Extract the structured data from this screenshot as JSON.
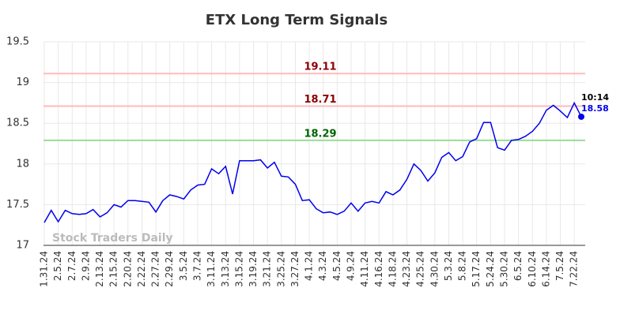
{
  "chart_data": {
    "type": "line",
    "title": "ETX Long Term Signals",
    "categories": [
      "1.31.24",
      null,
      "2.5.24",
      null,
      "2.7.24",
      null,
      "2.9.24",
      null,
      "2.13.24",
      null,
      "2.15.24",
      null,
      "2.20.24",
      null,
      "2.22.24",
      null,
      "2.27.24",
      null,
      "2.29.24",
      null,
      "3.5.24",
      null,
      "3.7.24",
      null,
      "3.11.24",
      null,
      "3.13.24",
      null,
      "3.15.24",
      null,
      "3.19.24",
      null,
      "3.21.24",
      null,
      "3.25.24",
      null,
      "3.27.24",
      null,
      "4.1.24",
      null,
      "4.3.24",
      null,
      "4.5.24",
      null,
      "4.9.24",
      null,
      "4.11.24",
      null,
      "4.16.24",
      null,
      "4.18.24",
      null,
      "4.23.24",
      null,
      "4.25.24",
      null,
      "4.30.24",
      null,
      "5.3.24",
      null,
      "5.8.24",
      null,
      "5.17.24",
      null,
      "5.24.24",
      null,
      "5.30.24",
      null,
      "6.5.24",
      null,
      "6.10.24",
      null,
      "6.14.24",
      null,
      "7.5.24",
      null,
      "7.22.24",
      null
    ],
    "values": [
      17.28,
      17.43,
      17.29,
      17.43,
      17.39,
      17.38,
      17.39,
      17.44,
      17.35,
      17.4,
      17.5,
      17.47,
      17.55,
      17.55,
      17.54,
      17.53,
      17.41,
      17.55,
      17.62,
      17.6,
      17.57,
      17.68,
      17.74,
      17.75,
      17.94,
      17.88,
      17.97,
      17.63,
      18.04,
      18.04,
      18.04,
      18.05,
      17.95,
      18.02,
      17.85,
      17.84,
      17.75,
      17.55,
      17.56,
      17.45,
      17.4,
      17.41,
      17.38,
      17.42,
      17.52,
      17.42,
      17.52,
      17.54,
      17.52,
      17.66,
      17.62,
      17.68,
      17.81,
      18.0,
      17.92,
      17.79,
      17.89,
      18.08,
      18.14,
      18.04,
      18.09,
      18.27,
      18.31,
      18.51,
      18.51,
      18.2,
      18.17,
      18.29,
      18.3,
      18.34,
      18.4,
      18.5,
      18.66,
      18.72,
      18.65,
      18.57,
      18.75,
      18.58
    ],
    "color": "#0000ee",
    "ylim": [
      17,
      19.5
    ],
    "yticks": [
      17,
      17.5,
      18,
      18.5,
      19,
      19.5
    ],
    "grid": true,
    "reference_lines": [
      {
        "value": 19.11,
        "color": "#ffbbbb",
        "label_color": "#8b0000"
      },
      {
        "value": 18.71,
        "color": "#ffbbbb",
        "label_color": "#8b0000"
      },
      {
        "value": 18.29,
        "color": "#99dd99",
        "label_color": "#006400"
      }
    ],
    "last_time": "10:14",
    "watermark": "Stock Traders Daily"
  }
}
